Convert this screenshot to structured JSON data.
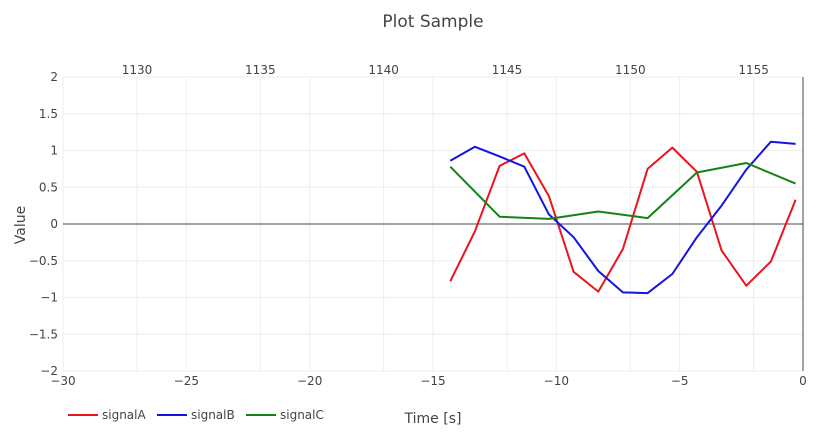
{
  "chart_data": {
    "type": "line",
    "title": "Plot Sample",
    "xlabel": "Time [s]",
    "ylabel": "Value",
    "xlim": [
      -30,
      0
    ],
    "ylim": [
      -2,
      2
    ],
    "x_ticks": [
      -30,
      -25,
      -20,
      -15,
      -10,
      -5,
      0
    ],
    "x_tick_labels": [
      "−30",
      "−25",
      "−20",
      "−15",
      "−10",
      "−5",
      "0"
    ],
    "y_ticks": [
      -2,
      -1.5,
      -1,
      -0.5,
      0,
      0.5,
      1,
      1.5,
      2
    ],
    "y_tick_labels": [
      "−2",
      "−1.5",
      "−1",
      "−0.5",
      "0",
      "0.5",
      "1",
      "1.5",
      "2"
    ],
    "top_axis": {
      "range": [
        1127,
        1157
      ],
      "ticks": [
        1130,
        1135,
        1140,
        1145,
        1150,
        1155
      ],
      "tick_labels": [
        "1130",
        "1135",
        "1140",
        "1145",
        "1150",
        "1155"
      ]
    },
    "grid": true,
    "legend_position": "bottom-left",
    "series": [
      {
        "name": "signalA",
        "color": "#e8141e",
        "x": [
          -14.3,
          -13.3,
          -12.3,
          -11.3,
          -10.3,
          -9.3,
          -8.3,
          -7.3,
          -6.3,
          -5.3,
          -4.3,
          -3.3,
          -2.3,
          -1.3,
          -0.3
        ],
        "y": [
          -0.78,
          -0.1,
          0.79,
          0.96,
          0.38,
          -0.65,
          -0.92,
          -0.34,
          0.75,
          1.04,
          0.71,
          -0.36,
          -0.84,
          -0.51,
          0.33
        ]
      },
      {
        "name": "signalB",
        "color": "#1414e0",
        "x": [
          -14.3,
          -13.3,
          -12.3,
          -11.3,
          -10.3,
          -9.3,
          -8.3,
          -7.3,
          -6.3,
          -5.3,
          -4.3,
          -3.3,
          -2.3,
          -1.3,
          -0.3
        ],
        "y": [
          0.86,
          1.05,
          0.92,
          0.78,
          0.13,
          -0.18,
          -0.64,
          -0.93,
          -0.94,
          -0.68,
          -0.18,
          0.25,
          0.74,
          1.12,
          1.09
        ]
      },
      {
        "name": "signalC",
        "color": "#148214",
        "x": [
          -14.3,
          -12.3,
          -10.3,
          -8.3,
          -6.3,
          -4.3,
          -2.3,
          -0.3
        ],
        "y": [
          0.78,
          0.1,
          0.07,
          0.17,
          0.08,
          0.7,
          0.83,
          0.55
        ]
      }
    ]
  }
}
